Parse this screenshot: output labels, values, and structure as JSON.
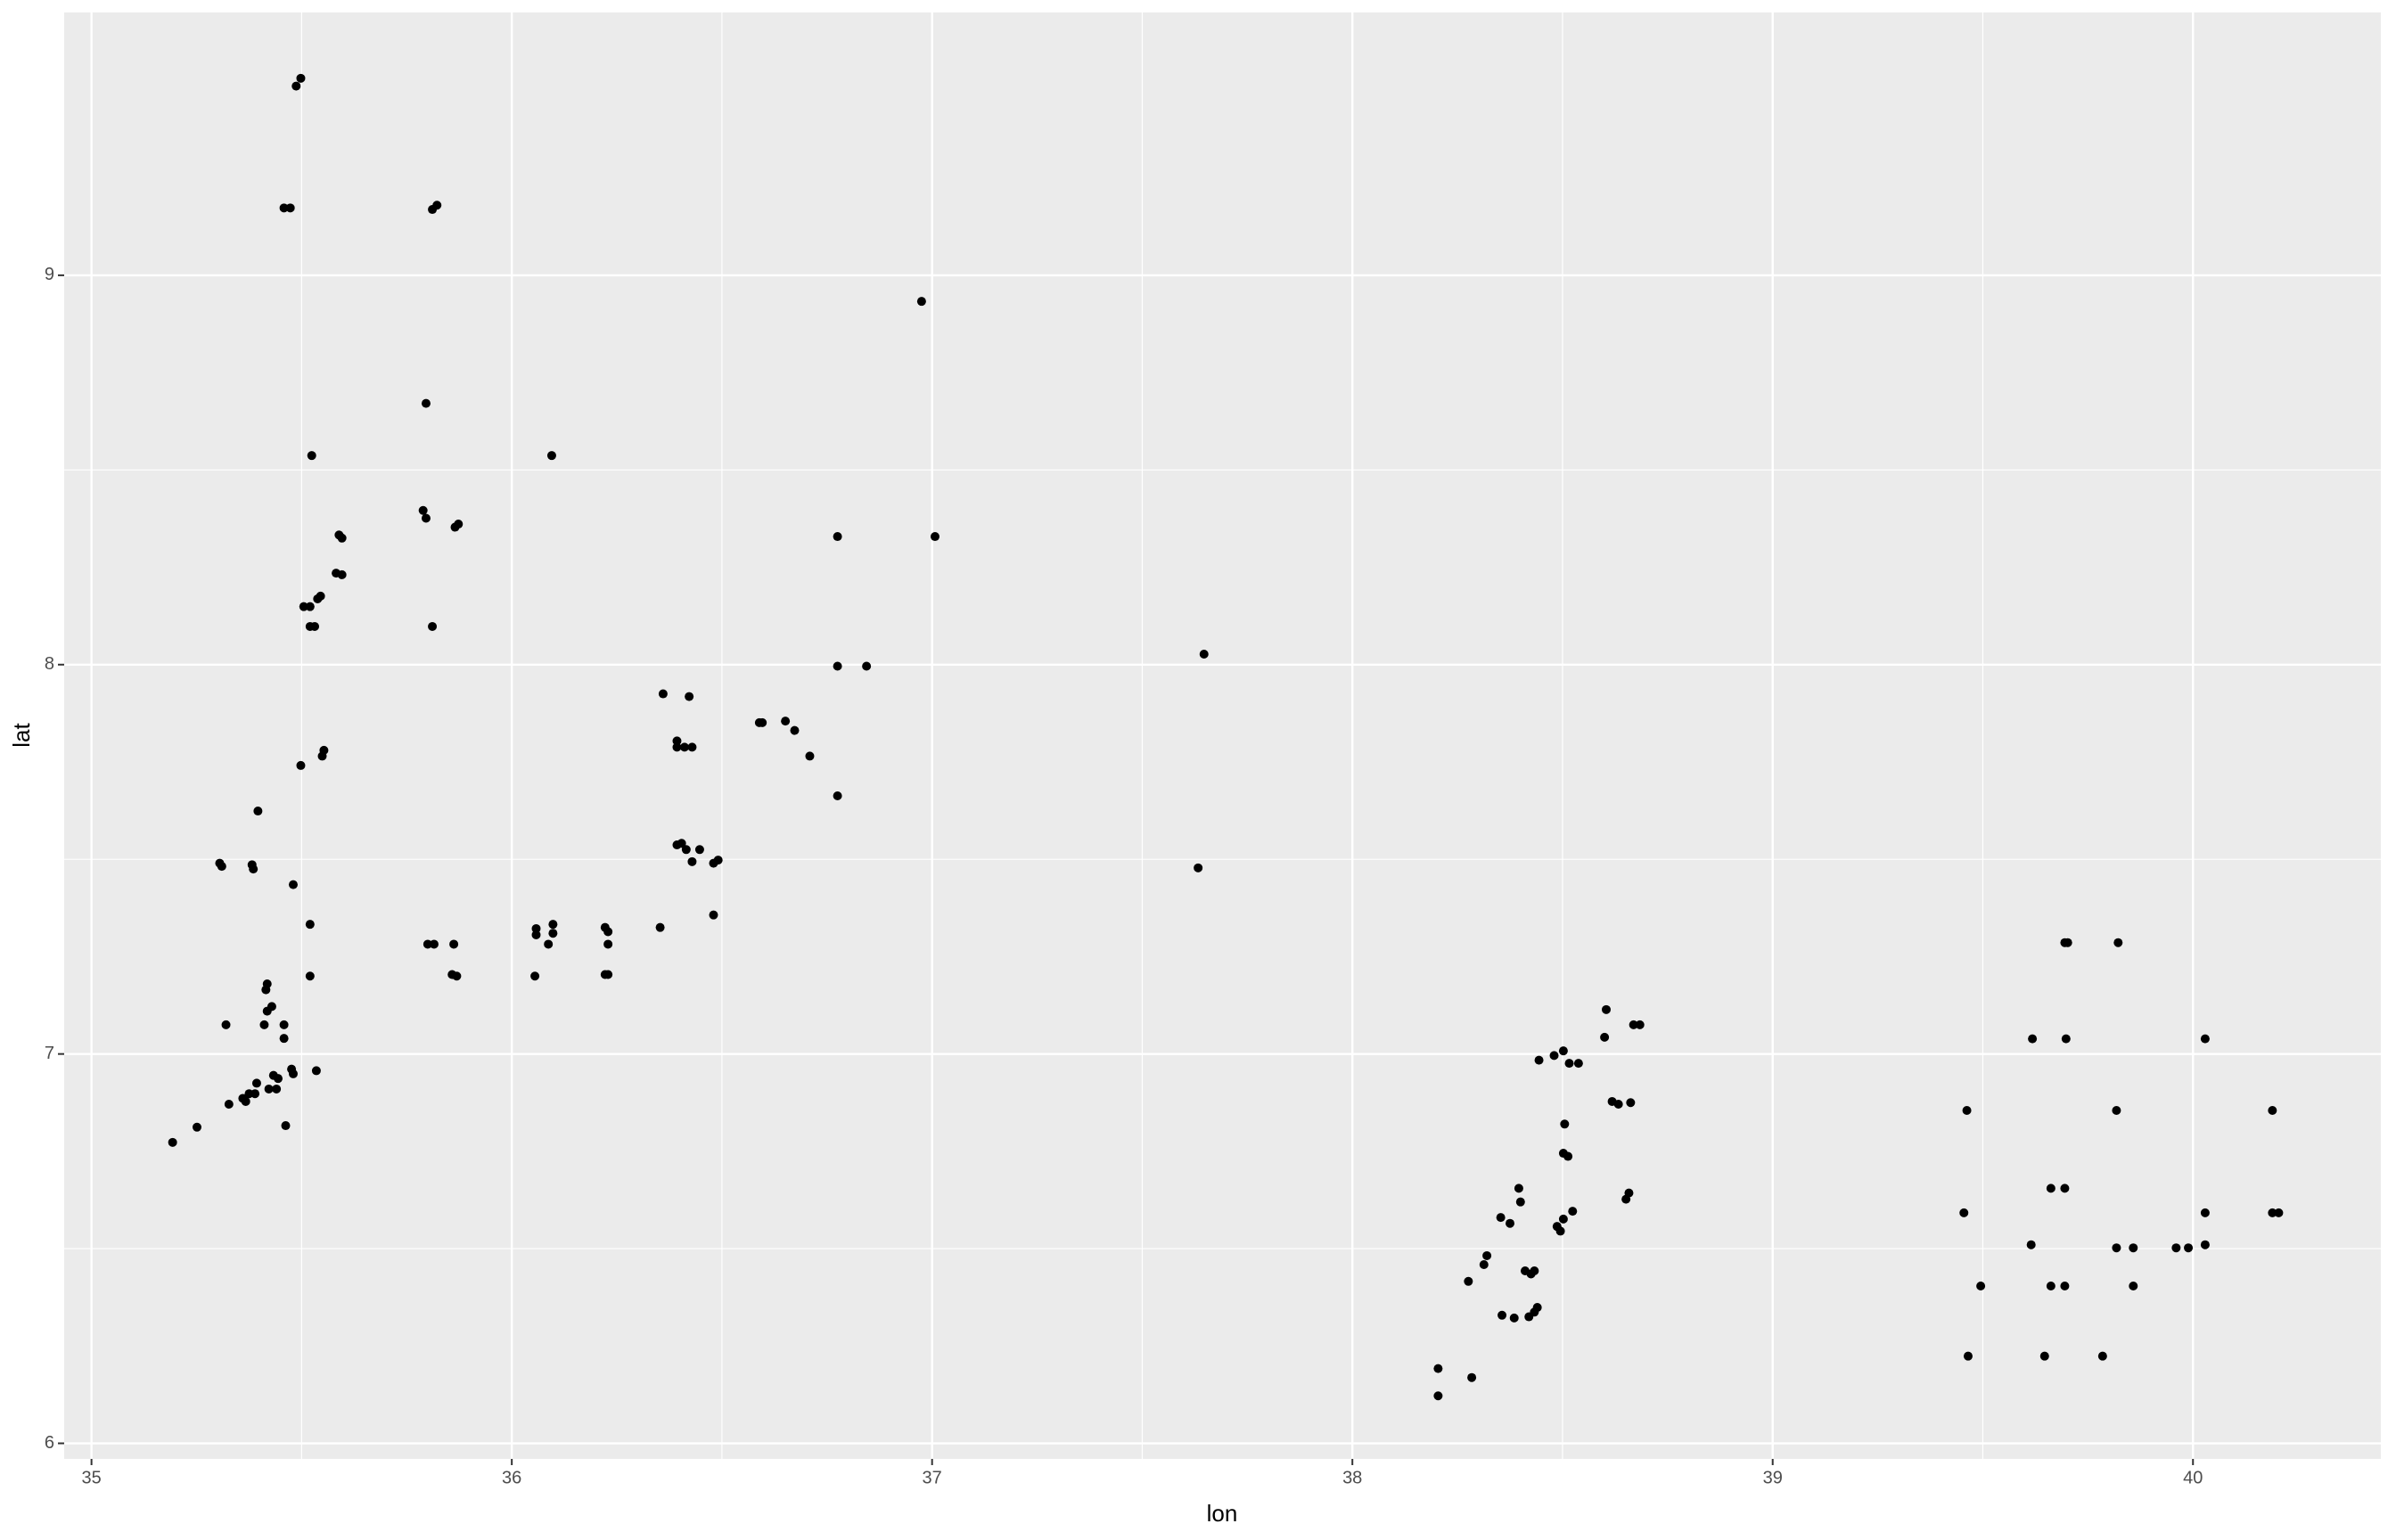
{
  "chart_data": {
    "type": "scatter",
    "xlabel": "lon",
    "ylabel": "lat",
    "color": "#000000",
    "grid": true,
    "xlim": [
      34.935,
      40.447
    ],
    "ylim": [
      5.96,
      9.675
    ],
    "xticks": [
      35,
      36,
      37,
      38,
      39,
      40
    ],
    "yticks": [
      6,
      7,
      8,
      9
    ],
    "x": [
      35.193,
      35.251,
      35.32,
      35.327,
      35.305,
      35.31,
      35.382,
      35.385,
      35.396,
      35.36,
      35.367,
      35.375,
      35.393,
      35.389,
      35.418,
      35.415,
      35.411,
      35.429,
      35.418,
      35.433,
      35.422,
      35.44,
      35.444,
      35.458,
      35.458,
      35.462,
      35.476,
      35.48,
      35.48,
      35.52,
      35.52,
      35.535,
      35.498,
      35.553,
      35.549,
      35.505,
      35.52,
      35.52,
      35.531,
      35.538,
      35.545,
      35.524,
      35.582,
      35.596,
      35.589,
      35.596,
      35.458,
      35.473,
      35.487,
      35.498,
      35.796,
      35.789,
      35.796,
      35.811,
      35.811,
      35.822,
      35.8,
      35.815,
      35.862,
      35.858,
      35.869,
      35.873,
      35.865,
      36.055,
      36.058,
      36.058,
      36.095,
      36.087,
      36.098,
      36.098,
      36.222,
      36.229,
      36.229,
      36.222,
      36.229,
      36.353,
      36.36,
      36.393,
      36.393,
      36.411,
      36.429,
      36.422,
      36.393,
      36.404,
      36.415,
      36.429,
      36.447,
      36.48,
      36.491,
      36.48,
      36.589,
      36.596,
      36.651,
      36.673,
      36.709,
      36.775,
      36.775,
      36.775,
      36.844,
      36.975,
      37.007,
      37.647,
      37.633,
      38.204,
      38.204,
      38.284,
      38.276,
      38.313,
      38.32,
      38.353,
      38.375,
      38.356,
      38.385,
      38.396,
      38.4,
      38.411,
      38.425,
      38.433,
      38.42,
      38.433,
      38.44,
      38.444,
      38.48,
      38.487,
      38.495,
      38.502,
      38.524,
      38.502,
      38.513,
      38.505,
      38.502,
      38.516,
      38.538,
      38.6,
      38.604,
      38.618,
      38.633,
      38.662,
      38.651,
      38.658,
      38.669,
      38.684,
      39.462,
      39.455,
      39.465,
      39.495,
      39.618,
      39.615,
      39.647,
      39.662,
      39.662,
      39.695,
      39.702,
      39.698,
      39.695,
      39.695,
      39.785,
      39.822,
      39.818,
      39.818,
      39.858,
      39.858,
      39.96,
      39.989,
      40.029,
      40.029,
      40.029,
      40.189,
      40.189,
      40.204
    ],
    "values": [
      6.773,
      6.812,
      7.075,
      6.871,
      7.49,
      7.482,
      7.486,
      7.475,
      7.624,
      6.886,
      6.878,
      6.898,
      6.925,
      6.898,
      7.18,
      7.165,
      7.075,
      7.122,
      7.11,
      6.945,
      6.91,
      6.91,
      6.937,
      7.075,
      7.04,
      6.816,
      6.961,
      7.435,
      6.949,
      7.333,
      7.2,
      6.957,
      7.741,
      7.78,
      7.765,
      8.149,
      8.149,
      8.098,
      8.098,
      8.169,
      8.176,
      8.537,
      8.235,
      8.231,
      8.333,
      8.325,
      9.173,
      9.173,
      9.486,
      9.506,
      8.671,
      8.396,
      8.376,
      8.098,
      9.169,
      9.18,
      7.282,
      7.282,
      7.282,
      7.204,
      7.2,
      8.361,
      8.353,
      7.2,
      7.322,
      7.306,
      8.537,
      7.282,
      7.31,
      7.333,
      7.325,
      7.314,
      7.282,
      7.204,
      7.204,
      7.325,
      7.925,
      7.804,
      7.788,
      7.788,
      7.788,
      7.918,
      7.537,
      7.541,
      7.525,
      7.494,
      7.525,
      7.49,
      7.498,
      7.357,
      7.851,
      7.851,
      7.855,
      7.831,
      7.765,
      7.663,
      7.996,
      8.329,
      7.996,
      8.933,
      8.329,
      8.027,
      7.478,
      6.122,
      6.192,
      6.169,
      6.416,
      6.459,
      6.482,
      6.58,
      6.565,
      6.329,
      6.322,
      6.655,
      6.62,
      6.443,
      6.435,
      6.443,
      6.325,
      6.337,
      6.349,
      6.984,
      6.996,
      6.557,
      6.545,
      6.576,
      6.596,
      6.745,
      6.737,
      6.82,
      7.008,
      6.976,
      6.976,
      7.043,
      7.114,
      6.878,
      6.871,
      6.875,
      6.627,
      6.643,
      7.075,
      7.075,
      6.855,
      6.592,
      6.224,
      6.404,
      7.039,
      6.51,
      6.224,
      6.404,
      6.655,
      7.286,
      7.286,
      7.039,
      6.655,
      6.404,
      6.224,
      7.286,
      6.855,
      6.502,
      6.502,
      6.404,
      6.502,
      6.502,
      7.039,
      6.592,
      6.51,
      6.855,
      6.592,
      6.592
    ]
  }
}
